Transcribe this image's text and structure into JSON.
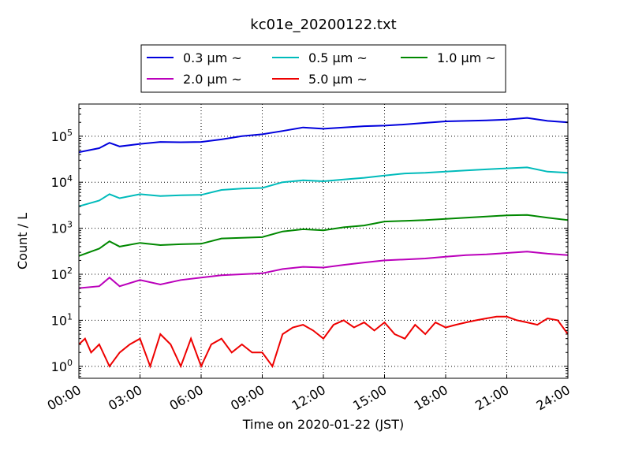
{
  "chart_data": {
    "type": "line",
    "title": "kc01e_20200122.txt",
    "xlabel": "Time on 2020-01-22 (JST)",
    "ylabel": "Count / L",
    "y_scale": "log",
    "x_range_hours": [
      0,
      24
    ],
    "ylim": [
      0.55,
      500000
    ],
    "grid": "dotted",
    "legend_placement": "top",
    "x_ticks": [
      {
        "hour": 0,
        "label": "00:00"
      },
      {
        "hour": 3,
        "label": "03:00"
      },
      {
        "hour": 6,
        "label": "06:00"
      },
      {
        "hour": 9,
        "label": "09:00"
      },
      {
        "hour": 12,
        "label": "12:00"
      },
      {
        "hour": 15,
        "label": "15:00"
      },
      {
        "hour": 18,
        "label": "18:00"
      },
      {
        "hour": 21,
        "label": "21:00"
      },
      {
        "hour": 24,
        "label": "24:00"
      }
    ],
    "y_ticks": [
      {
        "value": 1,
        "base": "10",
        "exp": "0"
      },
      {
        "value": 10,
        "base": "10",
        "exp": "1"
      },
      {
        "value": 100,
        "base": "10",
        "exp": "2"
      },
      {
        "value": 1000,
        "base": "10",
        "exp": "3"
      },
      {
        "value": 10000,
        "base": "10",
        "exp": "4"
      },
      {
        "value": 100000,
        "base": "10",
        "exp": "5"
      }
    ],
    "series": [
      {
        "name": "0.3 μm ~",
        "color": "#0000dd",
        "x": [
          0,
          1,
          1.5,
          2,
          3,
          4,
          5,
          6,
          7,
          8,
          9,
          10,
          11,
          12,
          13,
          14,
          15,
          16,
          17,
          18,
          19,
          20,
          21,
          22,
          23,
          24
        ],
        "y": [
          45000,
          55000,
          72000,
          60000,
          68000,
          75000,
          74000,
          75000,
          85000,
          100000,
          110000,
          130000,
          155000,
          145000,
          155000,
          165000,
          170000,
          180000,
          195000,
          210000,
          215000,
          220000,
          230000,
          250000,
          215000,
          200000
        ]
      },
      {
        "name": "0.5 μm ~",
        "color": "#00bbbb",
        "x": [
          0,
          1,
          1.5,
          2,
          3,
          4,
          5,
          6,
          7,
          8,
          9,
          10,
          11,
          12,
          13,
          14,
          15,
          16,
          17,
          18,
          19,
          20,
          21,
          22,
          23,
          24
        ],
        "y": [
          3000,
          4000,
          5500,
          4500,
          5500,
          5000,
          5200,
          5300,
          6800,
          7300,
          7500,
          10000,
          11000,
          10500,
          11500,
          12500,
          14000,
          15500,
          16000,
          17000,
          18000,
          19000,
          20000,
          21000,
          17000,
          16000
        ]
      },
      {
        "name": "1.0 μm ~",
        "color": "#008800",
        "x": [
          0,
          1,
          1.5,
          2,
          3,
          4,
          5,
          6,
          7,
          8,
          9,
          10,
          11,
          12,
          13,
          14,
          15,
          16,
          17,
          18,
          19,
          20,
          21,
          22,
          23,
          24
        ],
        "y": [
          250,
          360,
          520,
          400,
          480,
          430,
          450,
          460,
          600,
          620,
          640,
          850,
          950,
          900,
          1050,
          1150,
          1400,
          1450,
          1500,
          1600,
          1700,
          1800,
          1900,
          1950,
          1700,
          1500
        ]
      },
      {
        "name": "2.0 μm ~",
        "color": "#bb00bb",
        "x": [
          0,
          1,
          1.5,
          2,
          3,
          4,
          5,
          6,
          7,
          8,
          9,
          10,
          11,
          12,
          13,
          14,
          15,
          16,
          17,
          18,
          19,
          20,
          21,
          22,
          23,
          24
        ],
        "y": [
          50,
          55,
          85,
          55,
          75,
          60,
          75,
          85,
          95,
          100,
          105,
          130,
          145,
          140,
          160,
          180,
          200,
          210,
          220,
          240,
          260,
          270,
          290,
          310,
          280,
          260
        ]
      },
      {
        "name": "5.0 μm ~",
        "color": "#ee0000",
        "x": [
          0,
          0.3,
          0.6,
          1,
          1.5,
          2,
          2.5,
          3,
          3.5,
          4,
          4.5,
          5,
          5.5,
          6,
          6.5,
          7,
          7.5,
          8,
          8.5,
          9,
          9.5,
          10,
          10.5,
          11,
          11.5,
          12,
          12.5,
          13,
          13.5,
          14,
          14.5,
          15,
          15.5,
          16,
          16.5,
          17,
          17.5,
          18,
          18.5,
          19,
          19.5,
          20,
          20.5,
          21,
          21.5,
          22,
          22.5,
          23,
          23.5,
          24
        ],
        "y": [
          3,
          4,
          2,
          3,
          1,
          2,
          3,
          4,
          1,
          5,
          3,
          1,
          4,
          1,
          3,
          4,
          2,
          3,
          2,
          2,
          1,
          5,
          7,
          8,
          6,
          4,
          8,
          10,
          7,
          9,
          6,
          9,
          5,
          4,
          8,
          5,
          9,
          7,
          8,
          9,
          10,
          11,
          12,
          12,
          10,
          9,
          8,
          11,
          10,
          5
        ]
      }
    ]
  }
}
